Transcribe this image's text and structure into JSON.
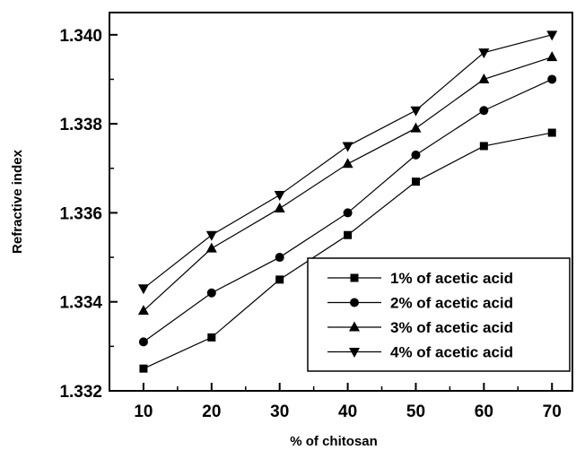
{
  "chart_data": {
    "type": "line",
    "xlabel": "% of chitosan",
    "ylabel": "Refractive index",
    "x": [
      10,
      20,
      30,
      40,
      50,
      60,
      70
    ],
    "x_ticks": [
      "10",
      "20",
      "30",
      "40",
      "50",
      "60",
      "70"
    ],
    "y_ticks": [
      "1.332",
      "1.334",
      "1.336",
      "1.338",
      "1.340"
    ],
    "xlim": [
      5,
      73
    ],
    "ylim": [
      1.332,
      1.3405
    ],
    "grid": false,
    "legend_position": "bottom-right",
    "series": [
      {
        "name": "1% of acetic acid",
        "marker": "square",
        "values": [
          1.3325,
          1.3332,
          1.3345,
          1.3355,
          1.3367,
          1.3375,
          1.3378
        ]
      },
      {
        "name": "2% of acetic acid",
        "marker": "circle",
        "values": [
          1.3331,
          1.3342,
          1.335,
          1.336,
          1.3373,
          1.3383,
          1.339
        ]
      },
      {
        "name": "3% of acetic acid",
        "marker": "triangle-up",
        "values": [
          1.3338,
          1.3352,
          1.3361,
          1.3371,
          1.3379,
          1.339,
          1.3395
        ]
      },
      {
        "name": "4% of acetic acid",
        "marker": "triangle-down",
        "values": [
          1.3343,
          1.3355,
          1.3364,
          1.3375,
          1.3383,
          1.3396,
          1.34
        ]
      }
    ],
    "colors": {
      "line": "#000000",
      "marker": "#000000",
      "background": "#ffffff"
    }
  }
}
